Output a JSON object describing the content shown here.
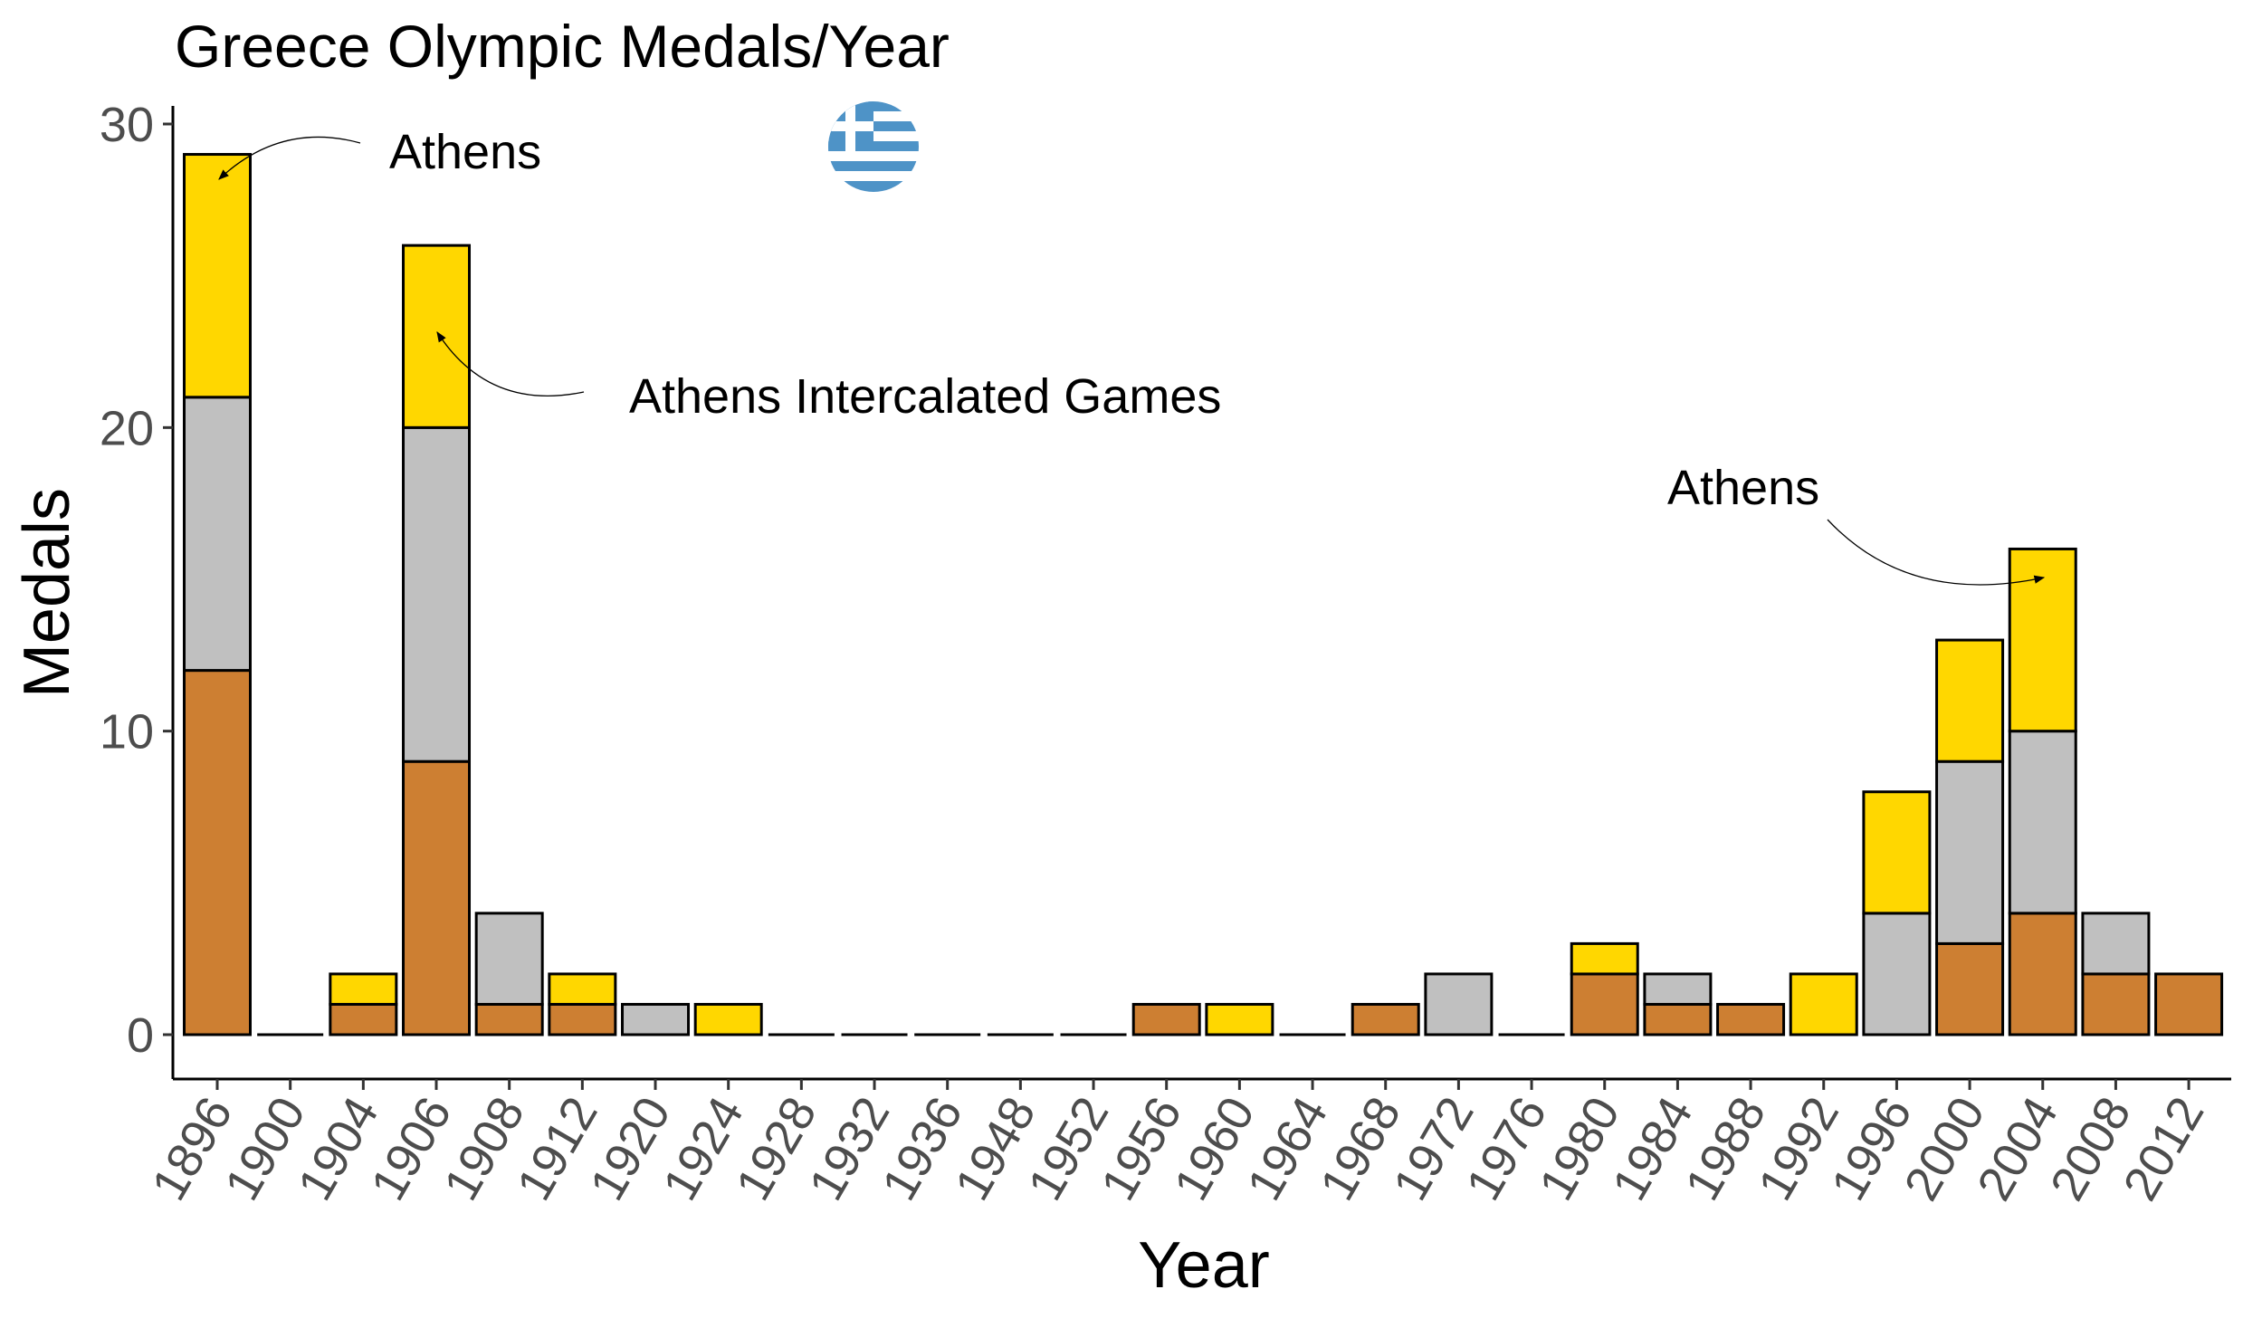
{
  "chart_data": {
    "type": "bar",
    "stacked": true,
    "title": "Greece Olympic Medals/Year",
    "xlabel": "Year",
    "ylabel": "Medals",
    "ylim": [
      0,
      30
    ],
    "yticks": [
      0,
      10,
      20,
      30
    ],
    "grid": false,
    "legend": "none",
    "categories": [
      "1896",
      "1900",
      "1904",
      "1906",
      "1908",
      "1912",
      "1920",
      "1924",
      "1928",
      "1932",
      "1936",
      "1948",
      "1952",
      "1956",
      "1960",
      "1964",
      "1968",
      "1972",
      "1976",
      "1980",
      "1984",
      "1988",
      "1992",
      "1996",
      "2000",
      "2004",
      "2008",
      "2012"
    ],
    "series": [
      {
        "color": "#CD7F32",
        "values": [
          12,
          0,
          1,
          9,
          1,
          1,
          0,
          0,
          0,
          0,
          0,
          0,
          0,
          1,
          0,
          0,
          1,
          0,
          0,
          2,
          1,
          1,
          0,
          0,
          3,
          4,
          2,
          2
        ]
      },
      {
        "color": "#C0C0C0",
        "values": [
          9,
          0,
          0,
          11,
          3,
          0,
          1,
          0,
          0,
          0,
          0,
          0,
          0,
          0,
          0,
          0,
          0,
          2,
          0,
          0,
          1,
          0,
          0,
          4,
          6,
          6,
          2,
          0
        ]
      },
      {
        "color": "#FFD700",
        "values": [
          8,
          0,
          1,
          6,
          0,
          1,
          0,
          1,
          0,
          0,
          0,
          0,
          0,
          0,
          1,
          0,
          0,
          0,
          0,
          1,
          0,
          0,
          2,
          4,
          4,
          6,
          0,
          0
        ]
      }
    ],
    "annotations": [
      {
        "text": "Athens",
        "target_category": "1896",
        "target_value": 28
      },
      {
        "text": "Athens Intercalated Games",
        "target_category": "1906",
        "target_value": 23
      },
      {
        "text": "Athens",
        "target_category": "2004",
        "target_value": 15
      }
    ],
    "flag_icon": "greece-flag-icon",
    "colors": {
      "flag_blue": "#4E93C7",
      "bar_outline": "#000000"
    }
  }
}
